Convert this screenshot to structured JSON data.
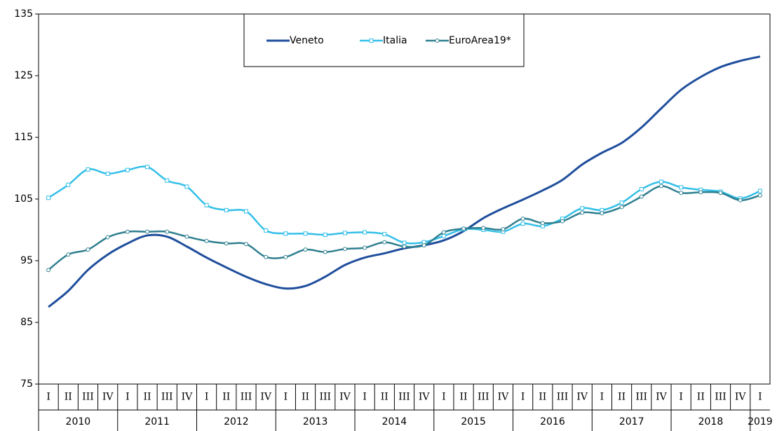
{
  "chart_data": {
    "type": "line",
    "categories": [
      "I",
      "II",
      "III",
      "IV",
      "I",
      "II",
      "III",
      "IV",
      "I",
      "II",
      "III",
      "IV",
      "I",
      "II",
      "III",
      "IV",
      "I",
      "II",
      "III",
      "IV",
      "I",
      "II",
      "III",
      "IV",
      "I",
      "II",
      "III",
      "IV",
      "I",
      "II",
      "III",
      "IV",
      "I",
      "II",
      "III",
      "IV",
      "I"
    ],
    "years": [
      "2010",
      "2011",
      "2012",
      "2013",
      "2014",
      "2015",
      "2016",
      "2017",
      "2018",
      "2019"
    ],
    "ylim": [
      75,
      135
    ],
    "yticks": [
      75,
      85,
      95,
      105,
      115,
      125,
      135
    ],
    "series": [
      {
        "name": "Veneto",
        "color": "#1f4e9c",
        "marker": "none",
        "values": [
          87.5,
          90.1,
          93.5,
          96.0,
          97.8,
          99.1,
          98.9,
          97.3,
          95.5,
          93.9,
          92.4,
          91.2,
          90.5,
          90.9,
          92.4,
          94.3,
          95.5,
          96.2,
          97.0,
          97.5,
          98.3,
          99.8,
          101.9,
          103.5,
          104.9,
          106.4,
          108.1,
          110.6,
          112.5,
          114.1,
          116.6,
          119.7,
          122.7,
          124.8,
          126.4,
          127.4,
          128.1
        ]
      },
      {
        "name": "Italia",
        "color": "#33bfe8",
        "marker": "square",
        "values": [
          105.2,
          107.3,
          109.8,
          109.1,
          109.7,
          110.2,
          108.0,
          107.0,
          104.0,
          103.2,
          103.0,
          99.9,
          99.4,
          99.4,
          99.2,
          99.5,
          99.6,
          99.3,
          97.9,
          98.0,
          99.0,
          100.1,
          100.0,
          99.7,
          101.0,
          100.6,
          101.8,
          103.5,
          103.2,
          104.4,
          106.6,
          107.8,
          106.9,
          106.5,
          106.2,
          105.1,
          106.3
        ]
      },
      {
        "name": "EuroArea19*",
        "color": "#2e7f8f",
        "marker": "circle",
        "values": [
          93.5,
          96.0,
          96.8,
          98.8,
          99.7,
          99.7,
          99.7,
          98.9,
          98.2,
          97.8,
          97.7,
          95.6,
          95.6,
          96.8,
          96.4,
          96.9,
          97.1,
          98.0,
          97.3,
          97.5,
          99.6,
          100.2,
          100.3,
          100.1,
          101.8,
          101.1,
          101.4,
          102.8,
          102.7,
          103.7,
          105.4,
          107.1,
          106.0,
          106.1,
          106.0,
          104.8,
          105.6
        ]
      }
    ]
  }
}
